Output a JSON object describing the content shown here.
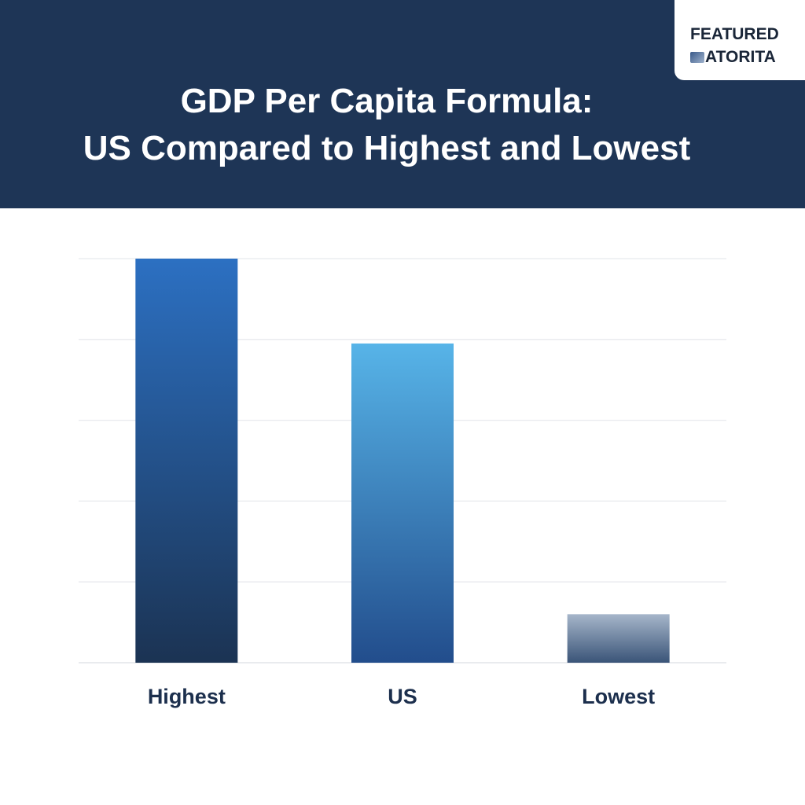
{
  "header": {
    "title_line1": "GDP Per Capita Formula:",
    "title_line2": "US Compared to Highest and Lowest",
    "background": "#1e3556"
  },
  "badge": {
    "line1": "FEATURED",
    "line2": "ATORITA",
    "logo_icon": "logo-icon"
  },
  "chart_data": {
    "type": "bar",
    "title": "GDP Per Capita Formula: US Compared to Highest and Lowest",
    "categories": [
      "Highest",
      "US",
      "Lowest"
    ],
    "values": [
      5.0,
      3.95,
      0.6
    ],
    "ylim": [
      0,
      5
    ],
    "gridlines": true,
    "y_tick_labels_shown": false,
    "xlabel": "",
    "ylabel": "",
    "colors": [
      {
        "top": "#2c70c2",
        "bottom": "#1b3353"
      },
      {
        "top": "#57b4e8",
        "bottom": "#224d8c"
      },
      {
        "top": "#a6b6ca",
        "bottom": "#3a5478"
      }
    ]
  }
}
